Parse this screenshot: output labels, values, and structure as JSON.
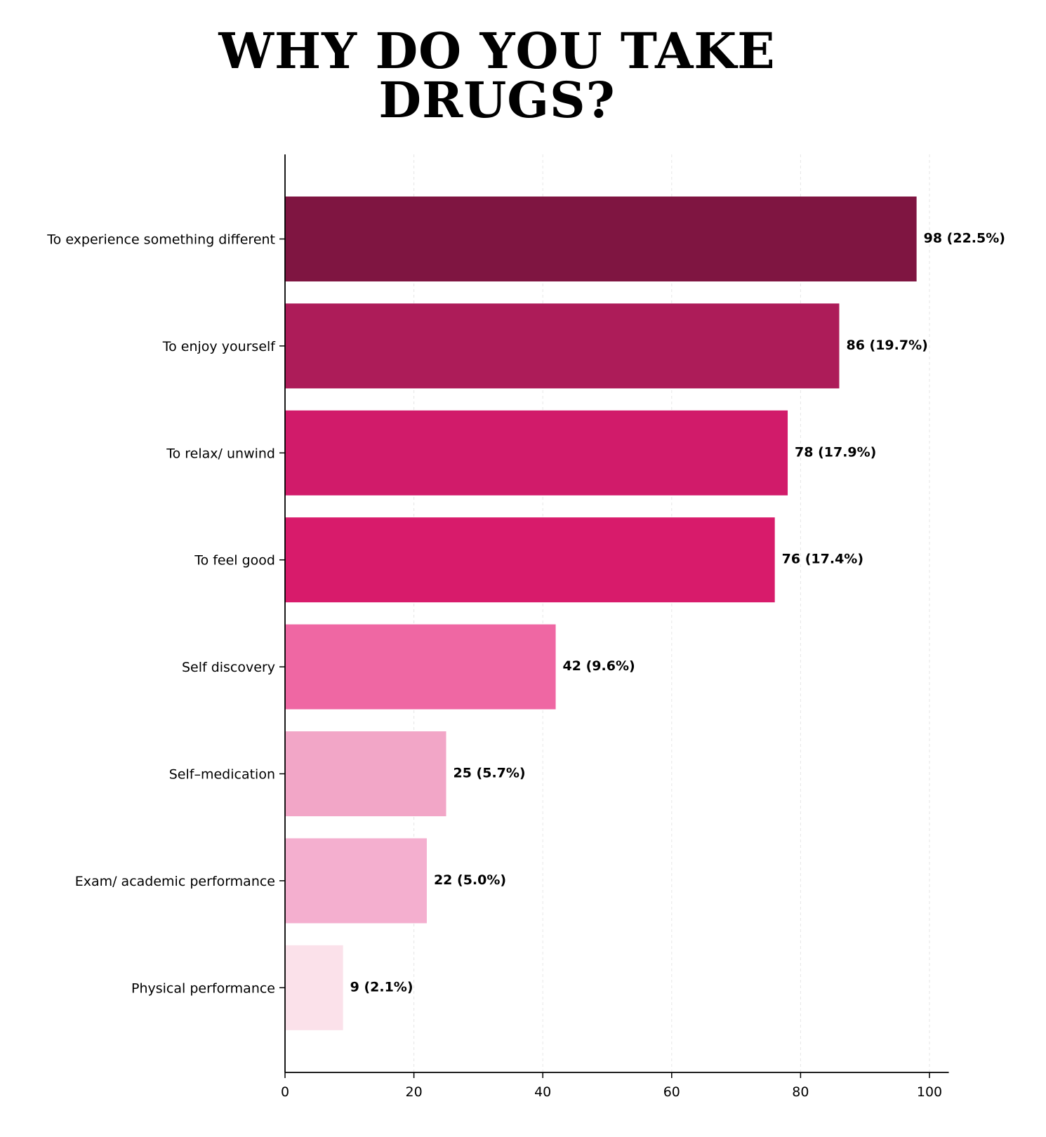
{
  "chart_data": {
    "type": "bar",
    "orientation": "horizontal",
    "title_lines": [
      "WHY DO YOU TAKE",
      "DRUGS?"
    ],
    "categories": [
      "To experience something different",
      "To enjoy yourself",
      "To relax/ unwind",
      "To feel good",
      "Self discovery",
      "Self–medication",
      "Exam/ academic performance",
      "Physical performance"
    ],
    "values": [
      98,
      86,
      78,
      76,
      42,
      25,
      22,
      9
    ],
    "value_labels": [
      "98 (22.5%)",
      "86 (19.7%)",
      "78 (17.9%)",
      "76 (17.4%)",
      "42 (9.6%)",
      "25 (5.7%)",
      "22 (5.0%)",
      "9 (2.1%)"
    ],
    "colors": [
      "#7f1541",
      "#ad1c59",
      "#d11b6a",
      "#d81b6b",
      "#ef67a3",
      "#f2a6c7",
      "#f4afcf",
      "#fbe1ea"
    ],
    "xlim": [
      0,
      103
    ],
    "x_ticks": [
      0,
      20,
      40,
      60,
      80,
      100
    ],
    "xlabel": "",
    "ylabel": "",
    "grid": "vertical dashed light gray"
  }
}
